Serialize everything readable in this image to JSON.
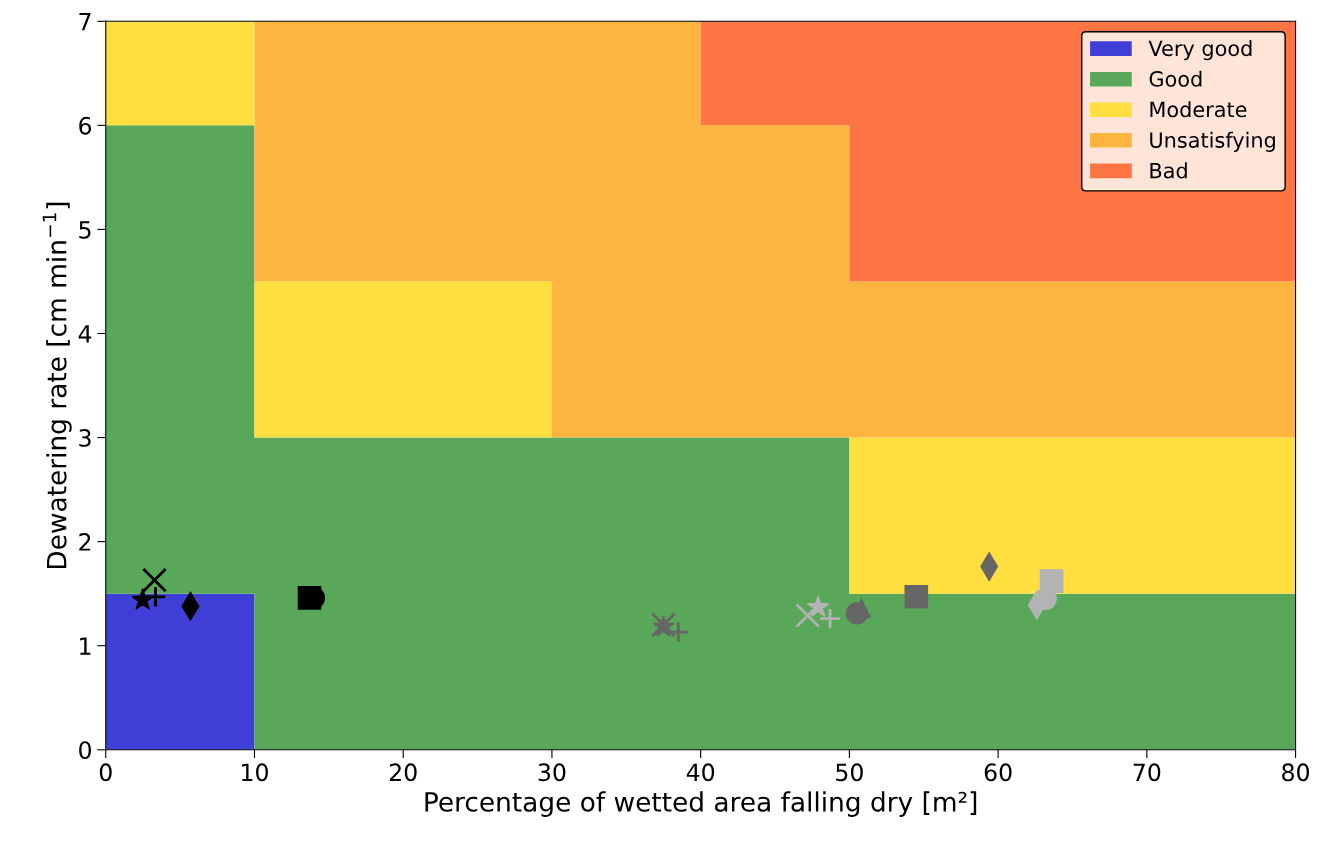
{
  "chart_data": {
    "type": "area",
    "stacked": true,
    "x": [
      0,
      10,
      10,
      30,
      30,
      40,
      40,
      50,
      50,
      80
    ],
    "xlabel": "Percentage of wetted area falling dry [m²]",
    "ylabel": "Dewatering rate [cm min$^{−1}$]",
    "xlim": [
      0,
      80
    ],
    "ylim": [
      0,
      7
    ],
    "xticks": [
      0,
      10,
      20,
      30,
      40,
      50,
      60,
      70,
      80
    ],
    "yticks": [
      0,
      1,
      2,
      3,
      4,
      5,
      6,
      7
    ],
    "grid": false,
    "legend": "top right",
    "series": [
      {
        "name": "Very good",
        "color": "#3f3fd8",
        "values": [
          1.5,
          1.5,
          0,
          0,
          0,
          0,
          0,
          0,
          0,
          0
        ]
      },
      {
        "name": "Good",
        "color": "#59a85a",
        "values": [
          4.5,
          4.5,
          3,
          3,
          3,
          3,
          3,
          3,
          1.5,
          1.5
        ]
      },
      {
        "name": "Moderate",
        "color": "#fedf3f",
        "values": [
          1,
          1,
          1.5,
          1.5,
          0,
          0,
          0,
          0,
          1.5,
          1.5
        ]
      },
      {
        "name": "Unsatisfying",
        "color": "#fdb53f",
        "values": [
          0,
          0,
          2.5,
          2.5,
          4,
          4,
          3,
          3,
          1.5,
          1.5
        ]
      },
      {
        "name": "Bad",
        "color": "#fe7442",
        "values": [
          0,
          0,
          0,
          0,
          0,
          0,
          1,
          1,
          2.5,
          2.5
        ]
      },
      {
        "type": "scatter",
        "marker": "star",
        "color": "#000000",
        "x": [
          2.48
        ],
        "values": [
          1.44
        ]
      },
      {
        "type": "scatter",
        "marker": "plus",
        "color": "#000000",
        "x": [
          3.35
        ],
        "values": [
          1.47
        ]
      },
      {
        "type": "scatter",
        "marker": "cross",
        "color": "#000000",
        "x": [
          3.28
        ],
        "values": [
          1.63
        ]
      },
      {
        "type": "scatter",
        "marker": "diamond",
        "color": "#000000",
        "x": [
          5.69
        ],
        "values": [
          1.38
        ]
      },
      {
        "type": "scatter",
        "marker": "square",
        "color": "#000000",
        "x": [
          13.7
        ],
        "values": [
          1.46
        ]
      },
      {
        "type": "scatter",
        "marker": "circle",
        "color": "#000000",
        "x": [
          14.0
        ],
        "values": [
          1.46
        ]
      },
      {
        "type": "scatter",
        "marker": "star",
        "color": "#666666",
        "x": [
          37.5
        ],
        "values": [
          1.18
        ]
      },
      {
        "type": "scatter",
        "marker": "cross",
        "color": "#666666",
        "x": [
          37.5
        ],
        "values": [
          1.2
        ]
      },
      {
        "type": "scatter",
        "marker": "plus",
        "color": "#666666",
        "x": [
          38.5
        ],
        "values": [
          1.13
        ]
      },
      {
        "type": "scatter",
        "marker": "circle",
        "color": "#666666",
        "x": [
          50.5
        ],
        "values": [
          1.31
        ]
      },
      {
        "type": "scatter",
        "marker": "triangle",
        "color": "#666666",
        "x": [
          50.8
        ],
        "values": [
          1.36
        ]
      },
      {
        "type": "scatter",
        "marker": "square",
        "color": "#666666",
        "x": [
          54.5
        ],
        "values": [
          1.47
        ]
      },
      {
        "type": "scatter",
        "marker": "diamond",
        "color": "#666666",
        "x": [
          59.4
        ],
        "values": [
          1.76
        ]
      },
      {
        "type": "scatter",
        "marker": "cross",
        "color": "#b3b3b3",
        "x": [
          47.2
        ],
        "values": [
          1.29
        ]
      },
      {
        "type": "scatter",
        "marker": "star",
        "color": "#b3b3b3",
        "x": [
          47.9
        ],
        "values": [
          1.37
        ]
      },
      {
        "type": "scatter",
        "marker": "plus",
        "color": "#b3b3b3",
        "x": [
          48.7
        ],
        "values": [
          1.26
        ]
      },
      {
        "type": "scatter",
        "marker": "diamond",
        "color": "#b3b3b3",
        "x": [
          62.6
        ],
        "values": [
          1.39
        ]
      },
      {
        "type": "scatter",
        "marker": "circle",
        "color": "#b3b3b3",
        "x": [
          63.2
        ],
        "values": [
          1.45
        ]
      },
      {
        "type": "scatter",
        "marker": "square",
        "color": "#b3b3b3",
        "x": [
          63.6
        ],
        "values": [
          1.62
        ]
      }
    ]
  }
}
